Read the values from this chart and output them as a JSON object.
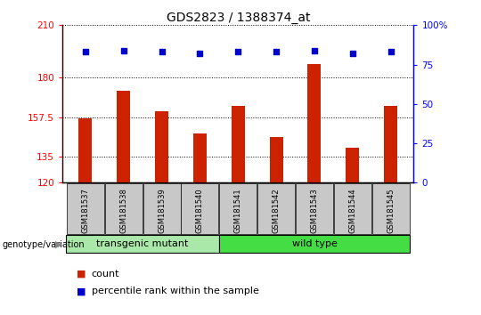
{
  "title": "GDS2823 / 1388374_at",
  "samples": [
    "GSM181537",
    "GSM181538",
    "GSM181539",
    "GSM181540",
    "GSM181541",
    "GSM181542",
    "GSM181543",
    "GSM181544",
    "GSM181545"
  ],
  "counts": [
    157.0,
    172.5,
    161.0,
    148.0,
    164.0,
    146.0,
    188.0,
    140.0,
    164.0
  ],
  "percentiles": [
    83,
    84,
    83,
    82,
    83,
    83,
    84,
    82,
    83
  ],
  "ylim_left": [
    120,
    210
  ],
  "ylim_right": [
    0,
    100
  ],
  "yticks_left": [
    120,
    135,
    157.5,
    180,
    210
  ],
  "yticks_right": [
    0,
    25,
    50,
    75,
    100
  ],
  "bar_color": "#cc2200",
  "dot_color": "#0000cc",
  "groups": [
    {
      "label": "transgenic mutant",
      "start": 0,
      "end": 4,
      "color": "#aae8aa"
    },
    {
      "label": "wild type",
      "start": 4,
      "end": 9,
      "color": "#44dd44"
    }
  ],
  "group_label_prefix": "genotype/variation",
  "legend_count_label": "count",
  "legend_pct_label": "percentile rank within the sample",
  "title_fontsize": 10,
  "tick_label_fontsize": 7.5,
  "bar_width": 0.35,
  "dot_size": 22
}
